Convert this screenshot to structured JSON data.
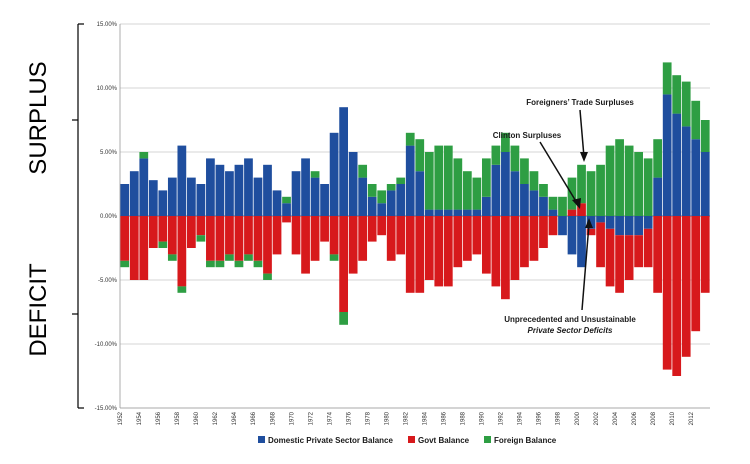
{
  "chart_data": {
    "type": "bar",
    "title": "",
    "xlabel": "",
    "ylabel": "",
    "ylim": [
      -15,
      15
    ],
    "xlim": [
      1952,
      2014
    ],
    "y_ticks": [
      "15.00%",
      "10.00%",
      "5.00%",
      "0.00%",
      "-5.00%",
      "-10.00%",
      "-15.00%"
    ],
    "y_tick_values": [
      15,
      10,
      5,
      0,
      -5,
      -10,
      -15
    ],
    "x_ticks": [
      "1952",
      "1954",
      "1956",
      "1958",
      "1960",
      "1962",
      "1964",
      "1966",
      "1968",
      "1970",
      "1972",
      "1974",
      "1976",
      "1978",
      "1980",
      "1982",
      "1984",
      "1986",
      "1988",
      "1990",
      "1992",
      "1994",
      "1996",
      "1998",
      "2000",
      "2002",
      "2004",
      "2006",
      "2008",
      "2010",
      "2012"
    ],
    "side_labels": {
      "top": "SURPLUS",
      "bottom": "DEFICIT"
    },
    "grid": true,
    "legend_position": "bottom",
    "x": [
      1952,
      1953,
      1954,
      1955,
      1956,
      1957,
      1958,
      1959,
      1960,
      1961,
      1962,
      1963,
      1964,
      1965,
      1966,
      1967,
      1968,
      1969,
      1970,
      1971,
      1972,
      1973,
      1974,
      1975,
      1976,
      1977,
      1978,
      1979,
      1980,
      1981,
      1982,
      1983,
      1984,
      1985,
      1986,
      1987,
      1988,
      1989,
      1990,
      1991,
      1992,
      1993,
      1994,
      1995,
      1996,
      1997,
      1998,
      1999,
      2000,
      2001,
      2002,
      2003,
      2004,
      2005,
      2006,
      2007,
      2008,
      2009,
      2010,
      2011,
      2012,
      2013
    ],
    "series": [
      {
        "name": "Domestic Private Sector Balance",
        "color": "#1f4e9e",
        "values": [
          2.5,
          3.5,
          4.5,
          2.8,
          2.0,
          3.0,
          5.5,
          3.0,
          2.5,
          4.5,
          4.0,
          3.5,
          4.0,
          4.5,
          3.0,
          4.0,
          2.0,
          1.0,
          3.5,
          4.5,
          3.0,
          2.5,
          6.5,
          8.5,
          5.0,
          3.0,
          1.5,
          1.0,
          2.0,
          2.5,
          5.5,
          3.5,
          0.5,
          0.5,
          0.5,
          0.5,
          0.5,
          0.5,
          1.5,
          4.0,
          5.0,
          3.5,
          2.5,
          2.0,
          1.5,
          0.5,
          -1.5,
          -3.0,
          -4.0,
          -1.0,
          -0.5,
          -1.0,
          -1.5,
          -1.5,
          -1.5,
          -1.0,
          3.0,
          9.5,
          8.0,
          7.0,
          6.0,
          5.0
        ]
      },
      {
        "name": "Govt Balance",
        "color": "#d7191c",
        "values": [
          -3.5,
          -5.0,
          -5.0,
          -2.5,
          -2.0,
          -3.0,
          -5.5,
          -2.5,
          -1.5,
          -3.5,
          -3.5,
          -3.0,
          -3.5,
          -3.0,
          -3.5,
          -4.5,
          -3.0,
          -0.5,
          -3.0,
          -4.5,
          -3.5,
          -2.0,
          -3.0,
          -7.5,
          -4.5,
          -3.5,
          -2.0,
          -1.5,
          -3.5,
          -3.0,
          -6.0,
          -6.0,
          -5.0,
          -5.5,
          -5.5,
          -4.0,
          -3.5,
          -3.0,
          -4.5,
          -5.5,
          -6.5,
          -5.0,
          -4.0,
          -3.5,
          -2.5,
          -1.5,
          0.0,
          0.5,
          1.0,
          -0.5,
          -3.5,
          -4.5,
          -4.5,
          -3.5,
          -2.5,
          -3.0,
          -6.0,
          -12.0,
          -12.5,
          -11.0,
          -9.0,
          -6.0
        ]
      },
      {
        "name": "Foreign Balance",
        "color": "#2e9e43",
        "values": [
          -0.5,
          0.0,
          0.5,
          0.0,
          -0.5,
          -0.5,
          -0.5,
          0.0,
          -0.5,
          -0.5,
          -0.5,
          -0.5,
          -0.5,
          -0.5,
          -0.5,
          -0.5,
          0.0,
          0.5,
          0.0,
          0.0,
          0.5,
          0.0,
          -0.5,
          -1.0,
          0.0,
          1.0,
          1.0,
          1.0,
          0.5,
          0.5,
          1.0,
          2.5,
          4.5,
          5.0,
          5.0,
          4.0,
          3.0,
          2.5,
          3.0,
          1.5,
          1.5,
          2.0,
          2.0,
          1.5,
          1.0,
          1.0,
          1.5,
          2.5,
          3.0,
          3.5,
          4.0,
          5.5,
          6.0,
          5.5,
          5.0,
          4.5,
          3.0,
          2.5,
          3.0,
          3.5,
          3.0,
          2.5
        ]
      }
    ],
    "annotations": [
      {
        "text": "Foreigners’ Trade Surpluses"
      },
      {
        "text": "Clinton Surpluses"
      },
      {
        "text_line1": "Unprecedented and Unsustainable",
        "text_line2": "Private Sector Deficits"
      }
    ]
  }
}
